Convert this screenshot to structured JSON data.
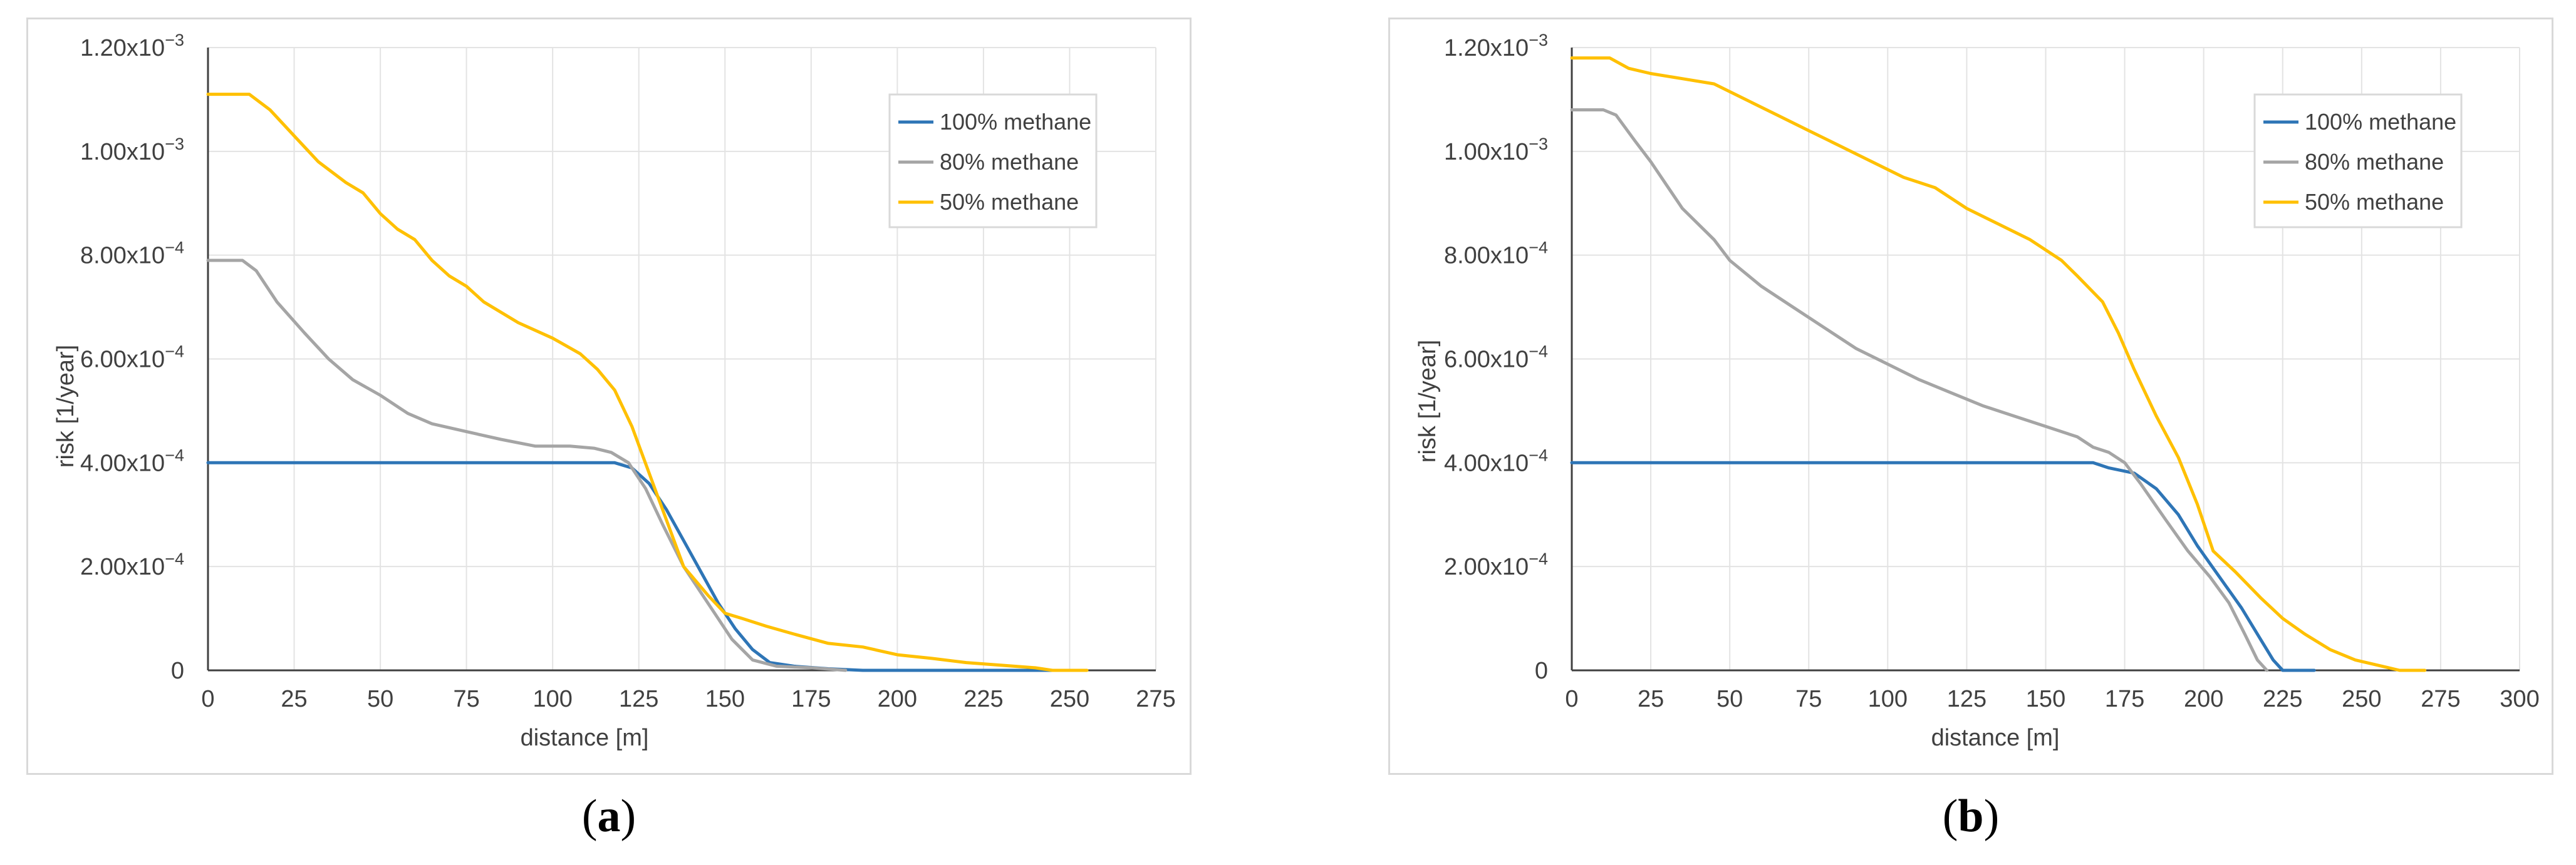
{
  "captions": {
    "a_open": "(",
    "a_letter": "a",
    "a_close": ")",
    "b_open": "(",
    "b_letter": "b",
    "b_close": ")"
  },
  "chart_data": [
    {
      "type": "line",
      "xlabel": "distance [m]",
      "ylabel": "risk [1/year]",
      "xlim": [
        0,
        275
      ],
      "ylim": [
        0,
        0.0012
      ],
      "x_ticks": [
        0,
        25,
        50,
        75,
        100,
        125,
        150,
        175,
        200,
        225,
        250,
        275
      ],
      "x_tick_labels": [
        "0",
        "25",
        "50",
        "75",
        "100",
        "125",
        "150",
        "175",
        "200",
        "225",
        "250",
        "275"
      ],
      "y_ticks": [
        0,
        0.0002,
        0.0004,
        0.0006,
        0.0008,
        0.001,
        0.0012
      ],
      "y_tick_labels": [
        {
          "mantissa": "0",
          "exp": ""
        },
        {
          "mantissa": "2.00x10",
          "exp": "−4"
        },
        {
          "mantissa": "4.00x10",
          "exp": "−4"
        },
        {
          "mantissa": "6.00x10",
          "exp": "−4"
        },
        {
          "mantissa": "8.00x10",
          "exp": "−4"
        },
        {
          "mantissa": "1.00x10",
          "exp": "−3"
        },
        {
          "mantissa": "1.20x10",
          "exp": "−3"
        }
      ],
      "grid": true,
      "legend_position": "top-right",
      "series": [
        {
          "name": "100% methane",
          "color": "#2e75b6",
          "points": [
            [
              0,
              0.0004
            ],
            [
              110,
              0.0004
            ],
            [
              118,
              0.0004
            ],
            [
              123,
              0.00039
            ],
            [
              128,
              0.00036
            ],
            [
              133,
              0.00031
            ],
            [
              138,
              0.00025
            ],
            [
              143,
              0.00019
            ],
            [
              148,
              0.00013
            ],
            [
              153,
              8e-05
            ],
            [
              158,
              4e-05
            ],
            [
              163,
              1.5e-05
            ],
            [
              170,
              8e-06
            ],
            [
              180,
              3e-06
            ],
            [
              190,
              0
            ],
            [
              250,
              0
            ]
          ]
        },
        {
          "name": "80% methane",
          "color": "#a5a5a5",
          "points": [
            [
              0,
              0.00079
            ],
            [
              10,
              0.00079
            ],
            [
              14,
              0.00077
            ],
            [
              20,
              0.00071
            ],
            [
              28,
              0.00065
            ],
            [
              35,
              0.0006
            ],
            [
              42,
              0.00056
            ],
            [
              50,
              0.00053
            ],
            [
              58,
              0.000495
            ],
            [
              65,
              0.000475
            ],
            [
              75,
              0.00046
            ],
            [
              85,
              0.000445
            ],
            [
              95,
              0.000432
            ],
            [
              105,
              0.000432
            ],
            [
              112,
              0.000428
            ],
            [
              117,
              0.00042
            ],
            [
              122,
              0.0004
            ],
            [
              127,
              0.00035
            ],
            [
              132,
              0.00028
            ],
            [
              138,
              0.0002
            ],
            [
              145,
              0.00013
            ],
            [
              152,
              6e-05
            ],
            [
              158,
              2e-05
            ],
            [
              165,
              8e-06
            ],
            [
              175,
              5e-06
            ],
            [
              185,
              0
            ]
          ]
        },
        {
          "name": "50% methane",
          "color": "#ffc000",
          "points": [
            [
              0,
              0.00111
            ],
            [
              12,
              0.00111
            ],
            [
              18,
              0.00108
            ],
            [
              25,
              0.00103
            ],
            [
              32,
              0.00098
            ],
            [
              40,
              0.00094
            ],
            [
              45,
              0.00092
            ],
            [
              50,
              0.00088
            ],
            [
              55,
              0.00085
            ],
            [
              60,
              0.00083
            ],
            [
              65,
              0.00079
            ],
            [
              70,
              0.00076
            ],
            [
              75,
              0.00074
            ],
            [
              80,
              0.00071
            ],
            [
              90,
              0.00067
            ],
            [
              100,
              0.00064
            ],
            [
              108,
              0.00061
            ],
            [
              113,
              0.00058
            ],
            [
              118,
              0.00054
            ],
            [
              123,
              0.00047
            ],
            [
              128,
              0.00038
            ],
            [
              133,
              0.00029
            ],
            [
              138,
              0.0002
            ],
            [
              145,
              0.000145
            ],
            [
              150,
              0.00011
            ],
            [
              155,
              0.0001
            ],
            [
              162,
              8.5e-05
            ],
            [
              170,
              7e-05
            ],
            [
              180,
              5.2e-05
            ],
            [
              190,
              4.5e-05
            ],
            [
              200,
              3e-05
            ],
            [
              210,
              2.3e-05
            ],
            [
              220,
              1.5e-05
            ],
            [
              230,
              1e-05
            ],
            [
              240,
              5e-06
            ],
            [
              245,
              0
            ],
            [
              255,
              0
            ]
          ]
        }
      ]
    },
    {
      "type": "line",
      "xlabel": "distance [m]",
      "ylabel": "risk [1/year]",
      "xlim": [
        0,
        300
      ],
      "ylim": [
        0,
        0.0012
      ],
      "x_ticks": [
        0,
        25,
        50,
        75,
        100,
        125,
        150,
        175,
        200,
        225,
        250,
        275,
        300
      ],
      "x_tick_labels": [
        "0",
        "25",
        "50",
        "75",
        "100",
        "125",
        "150",
        "175",
        "200",
        "225",
        "250",
        "275",
        "300"
      ],
      "y_ticks": [
        0,
        0.0002,
        0.0004,
        0.0006,
        0.0008,
        0.001,
        0.0012
      ],
      "y_tick_labels": [
        {
          "mantissa": "0",
          "exp": ""
        },
        {
          "mantissa": "2.00x10",
          "exp": "−4"
        },
        {
          "mantissa": "4.00x10",
          "exp": "−4"
        },
        {
          "mantissa": "6.00x10",
          "exp": "−4"
        },
        {
          "mantissa": "8.00x10",
          "exp": "−4"
        },
        {
          "mantissa": "1.00x10",
          "exp": "−3"
        },
        {
          "mantissa": "1.20x10",
          "exp": "−3"
        }
      ],
      "grid": true,
      "legend_position": "top-right",
      "series": [
        {
          "name": "100% methane",
          "color": "#2e75b6",
          "points": [
            [
              0,
              0.0004
            ],
            [
              165,
              0.0004
            ],
            [
              170,
              0.00039
            ],
            [
              178,
              0.00038
            ],
            [
              185,
              0.00035
            ],
            [
              192,
              0.0003
            ],
            [
              198,
              0.00024
            ],
            [
              205,
              0.00018
            ],
            [
              212,
              0.00012
            ],
            [
              218,
              6e-05
            ],
            [
              222,
              2e-05
            ],
            [
              225,
              0
            ],
            [
              235,
              0
            ]
          ]
        },
        {
          "name": "80% methane",
          "color": "#a5a5a5",
          "points": [
            [
              0,
              0.00108
            ],
            [
              10,
              0.00108
            ],
            [
              14,
              0.00107
            ],
            [
              20,
              0.00102
            ],
            [
              25,
              0.00098
            ],
            [
              35,
              0.00089
            ],
            [
              45,
              0.00083
            ],
            [
              50,
              0.00079
            ],
            [
              60,
              0.00074
            ],
            [
              70,
              0.0007
            ],
            [
              80,
              0.00066
            ],
            [
              90,
              0.00062
            ],
            [
              100,
              0.00059
            ],
            [
              110,
              0.00056
            ],
            [
              120,
              0.000535
            ],
            [
              130,
              0.00051
            ],
            [
              140,
              0.00049
            ],
            [
              150,
              0.00047
            ],
            [
              160,
              0.00045
            ],
            [
              165,
              0.00043
            ],
            [
              170,
              0.00042
            ],
            [
              175,
              0.0004
            ],
            [
              180,
              0.00036
            ],
            [
              188,
              0.00029
            ],
            [
              195,
              0.00023
            ],
            [
              202,
              0.00018
            ],
            [
              208,
              0.00013
            ],
            [
              213,
              7e-05
            ],
            [
              217,
              2e-05
            ],
            [
              220,
              0
            ]
          ]
        },
        {
          "name": "50% methane",
          "color": "#ffc000",
          "points": [
            [
              0,
              0.00118
            ],
            [
              12,
              0.00118
            ],
            [
              18,
              0.00116
            ],
            [
              25,
              0.00115
            ],
            [
              35,
              0.00114
            ],
            [
              45,
              0.00113
            ],
            [
              55,
              0.0011
            ],
            [
              65,
              0.00107
            ],
            [
              75,
              0.00104
            ],
            [
              85,
              0.00101
            ],
            [
              95,
              0.00098
            ],
            [
              105,
              0.00095
            ],
            [
              115,
              0.00093
            ],
            [
              125,
              0.00089
            ],
            [
              135,
              0.00086
            ],
            [
              145,
              0.00083
            ],
            [
              155,
              0.00079
            ],
            [
              160,
              0.00076
            ],
            [
              168,
              0.00071
            ],
            [
              173,
              0.00065
            ],
            [
              178,
              0.00058
            ],
            [
              185,
              0.00049
            ],
            [
              192,
              0.00041
            ],
            [
              198,
              0.00032
            ],
            [
              203,
              0.00023
            ],
            [
              210,
              0.00019
            ],
            [
              218,
              0.00014
            ],
            [
              225,
              0.0001
            ],
            [
              232,
              7e-05
            ],
            [
              240,
              4e-05
            ],
            [
              248,
              2e-05
            ],
            [
              255,
              1e-05
            ],
            [
              262,
              0
            ],
            [
              270,
              0
            ]
          ]
        }
      ]
    }
  ]
}
